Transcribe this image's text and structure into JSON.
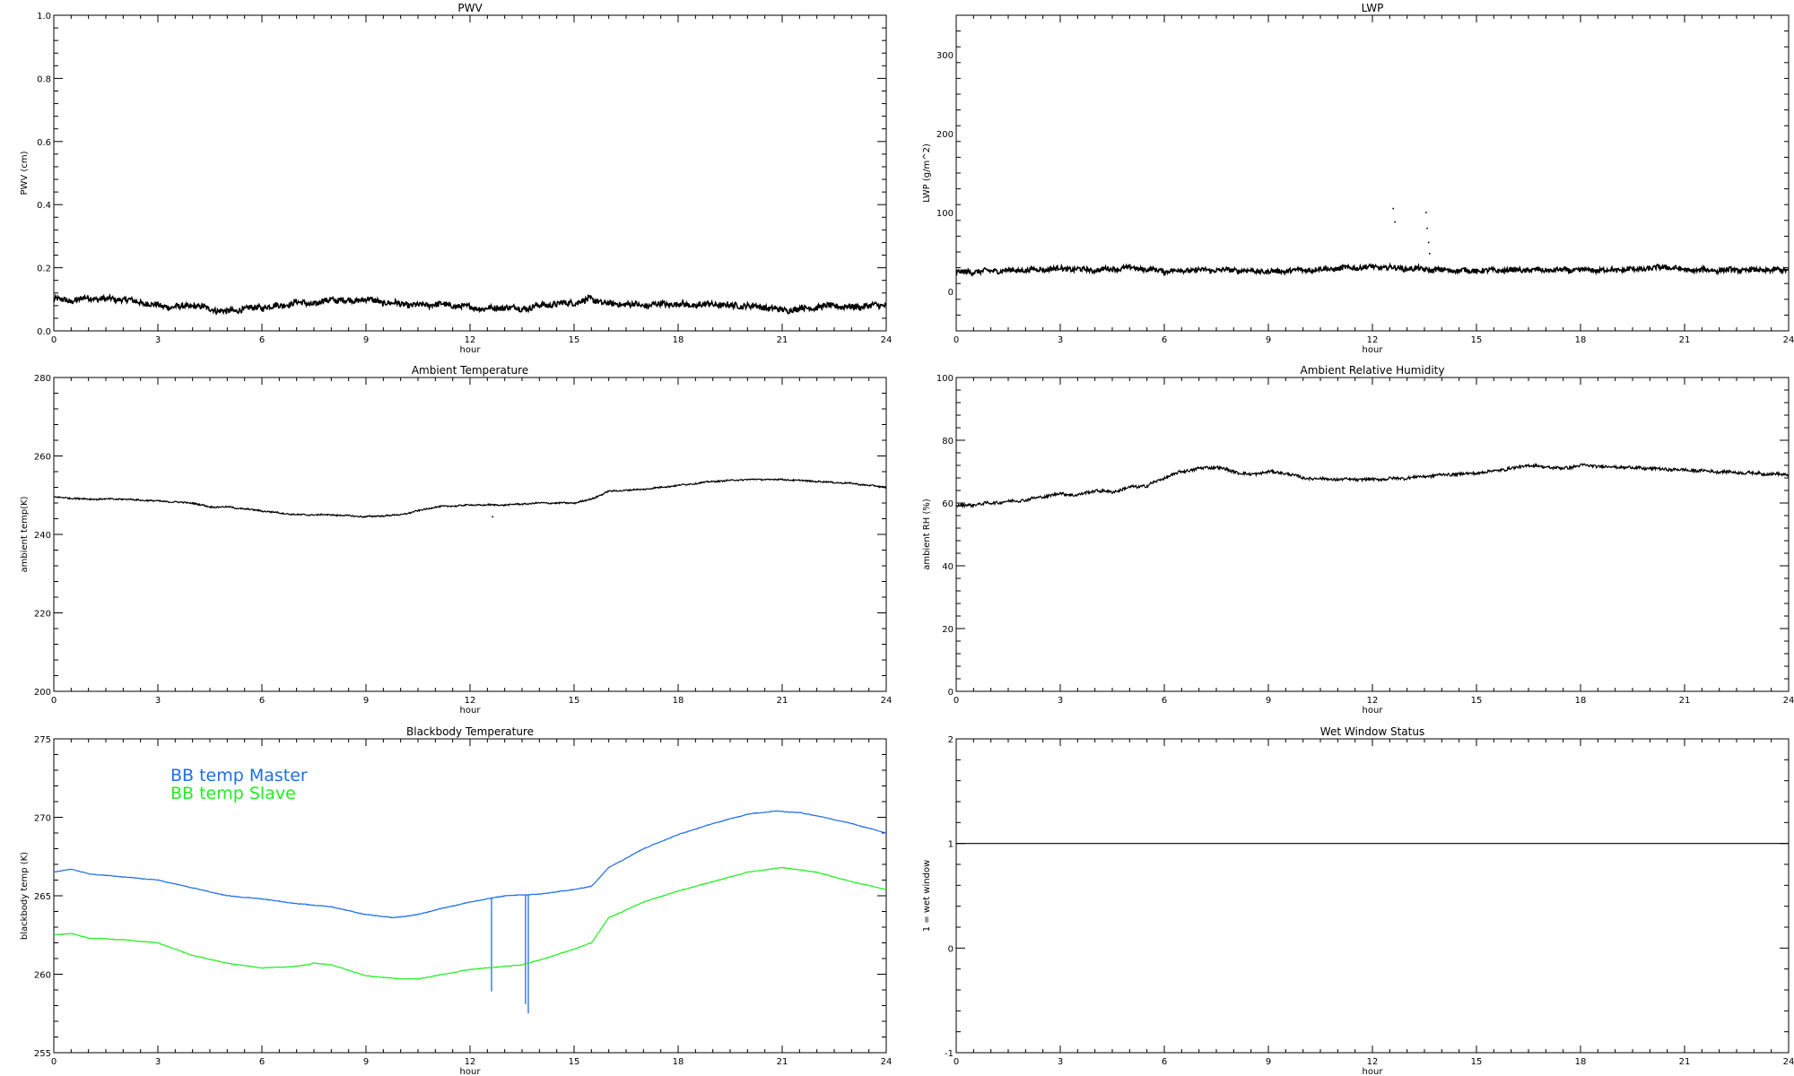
{
  "chart_data": [
    {
      "type": "line",
      "title": "PWV",
      "xlabel": "hour",
      "ylabel": "PWV (cm)",
      "xlim": [
        0,
        24
      ],
      "ylim": [
        0,
        1
      ],
      "xticks": [
        0,
        3,
        6,
        9,
        12,
        15,
        18,
        21,
        24
      ],
      "yticks": [
        0,
        0.2,
        0.4,
        0.6,
        0.8,
        1
      ],
      "ytick_labels": [
        "0.0",
        "0.2",
        "0.4",
        "0.6",
        "0.8",
        "1.0"
      ],
      "noise": 0.009,
      "series": [
        {
          "color": "#000000",
          "x": [
            0,
            0.5,
            1,
            1.5,
            2,
            2.5,
            3,
            3.5,
            4,
            4.5,
            5,
            5.5,
            6,
            6.5,
            7,
            7.5,
            8,
            8.5,
            9,
            9.5,
            10,
            10.5,
            11,
            11.5,
            12,
            12.5,
            13,
            13.5,
            14,
            14.5,
            15,
            15.5,
            16,
            16.5,
            17,
            17.5,
            18,
            18.5,
            19,
            19.5,
            20,
            20.5,
            21,
            21.5,
            22,
            22.5,
            23,
            23.5,
            24
          ],
          "y": [
            0.1,
            0.095,
            0.105,
            0.1,
            0.1,
            0.09,
            0.08,
            0.075,
            0.08,
            0.07,
            0.06,
            0.07,
            0.075,
            0.08,
            0.09,
            0.085,
            0.1,
            0.095,
            0.1,
            0.09,
            0.085,
            0.08,
            0.085,
            0.08,
            0.075,
            0.07,
            0.075,
            0.07,
            0.08,
            0.085,
            0.09,
            0.1,
            0.085,
            0.085,
            0.08,
            0.085,
            0.085,
            0.08,
            0.085,
            0.08,
            0.08,
            0.075,
            0.065,
            0.07,
            0.075,
            0.08,
            0.075,
            0.08,
            0.08
          ]
        }
      ]
    },
    {
      "type": "line",
      "title": "LWP",
      "xlabel": "hour",
      "ylabel": "LWP (g/m^2)",
      "xlim": [
        0,
        24
      ],
      "ylim": [
        -50,
        350
      ],
      "xticks": [
        0,
        3,
        6,
        9,
        12,
        15,
        18,
        21,
        24
      ],
      "yticks": [
        0,
        100,
        200,
        300
      ],
      "noise": 3,
      "series": [
        {
          "color": "#000000",
          "x": [
            0,
            1,
            2,
            3,
            4,
            5,
            6,
            7,
            8,
            9,
            10,
            11,
            12,
            13,
            14,
            15,
            16,
            17,
            18,
            19,
            20,
            20.5,
            21,
            22,
            23,
            24
          ],
          "y": [
            24,
            26,
            27,
            29,
            27,
            30,
            26,
            27,
            27,
            25,
            27,
            29,
            31,
            29,
            27,
            26,
            27,
            27,
            27,
            27,
            29,
            31,
            27,
            27,
            27,
            27
          ]
        }
      ],
      "outliers": [
        {
          "x": 12.6,
          "y": 105
        },
        {
          "x": 12.65,
          "y": 88
        },
        {
          "x": 13.55,
          "y": 100
        },
        {
          "x": 13.58,
          "y": 80
        },
        {
          "x": 13.62,
          "y": 62
        },
        {
          "x": 13.65,
          "y": 48
        }
      ]
    },
    {
      "type": "line",
      "title": "Ambient Temperature",
      "xlabel": "hour",
      "ylabel": "ambient temp(K)",
      "xlim": [
        0,
        24
      ],
      "ylim": [
        200,
        280
      ],
      "xticks": [
        0,
        3,
        6,
        9,
        12,
        15,
        18,
        21,
        24
      ],
      "yticks": [
        200,
        220,
        240,
        260,
        280
      ],
      "noise": 0.18,
      "series": [
        {
          "color": "#000000",
          "x": [
            0,
            1,
            2,
            3,
            4,
            4.5,
            5,
            6,
            7,
            8,
            9,
            10,
            11,
            12,
            13,
            14,
            15,
            15.5,
            16,
            17,
            18,
            19,
            20,
            21,
            22,
            23,
            24
          ],
          "y": [
            249.5,
            249,
            249,
            248.5,
            248,
            247,
            247,
            246,
            245,
            245,
            244.5,
            245,
            247,
            247.5,
            247.5,
            248,
            248,
            249,
            251,
            251.5,
            252.5,
            253.5,
            254,
            254,
            253.5,
            253,
            252
          ]
        }
      ],
      "outliers": [
        {
          "x": 12.65,
          "y": 244.5
        }
      ]
    },
    {
      "type": "line",
      "title": "Ambient Relative Humidity",
      "xlabel": "hour",
      "ylabel": "ambient RH (%)",
      "xlim": [
        0,
        24
      ],
      "ylim": [
        0,
        100
      ],
      "xticks": [
        0,
        3,
        6,
        9,
        12,
        15,
        18,
        21,
        24
      ],
      "yticks": [
        0,
        20,
        40,
        60,
        80,
        100
      ],
      "noise": 0.45,
      "series": [
        {
          "color": "#000000",
          "x": [
            0,
            0.5,
            1,
            1.5,
            2,
            2.5,
            3,
            3.5,
            4,
            4.5,
            5,
            5.5,
            6,
            6.5,
            7,
            7.5,
            8,
            8.5,
            9,
            9.5,
            10,
            11,
            12,
            13,
            14,
            15,
            16,
            16.5,
            17,
            17.5,
            18,
            19,
            20,
            21,
            22,
            23,
            24
          ],
          "y": [
            59,
            59.5,
            60,
            60.5,
            61,
            62,
            63,
            62.5,
            64,
            63.5,
            65,
            65.5,
            68,
            70,
            71,
            71.5,
            70,
            69,
            70,
            69.5,
            68,
            67.5,
            67.5,
            68,
            69,
            69.5,
            71,
            72,
            71.5,
            71,
            72,
            71.5,
            71,
            70.5,
            70,
            69.5,
            69
          ]
        }
      ]
    },
    {
      "type": "line",
      "title": "Blackbody Temperature",
      "xlabel": "hour",
      "ylabel": "blackbody temp (K)",
      "xlim": [
        0,
        24
      ],
      "ylim": [
        255,
        275
      ],
      "xticks": [
        0,
        3,
        6,
        9,
        12,
        15,
        18,
        21,
        24
      ],
      "yticks": [
        255,
        260,
        265,
        270,
        275
      ],
      "noise": 0.02,
      "legend_position": "upper-left",
      "series": [
        {
          "name": "BB temp Master",
          "color": "#1f6fe5",
          "x": [
            0,
            0.5,
            1,
            2,
            3,
            4,
            5,
            6,
            7,
            8,
            9,
            9.8,
            10.5,
            11,
            12,
            13,
            14,
            15,
            15.5,
            16,
            17,
            18,
            19,
            20,
            20.8,
            21.5,
            22,
            23,
            24
          ],
          "y": [
            266.5,
            266.7,
            266.4,
            266.2,
            266,
            265.5,
            265,
            264.8,
            264.5,
            264.3,
            263.8,
            263.6,
            263.8,
            264.1,
            264.6,
            265,
            265.1,
            265.4,
            265.6,
            266.8,
            268,
            268.9,
            269.6,
            270.2,
            270.4,
            270.3,
            270.1,
            269.6,
            269
          ],
          "dips": [
            {
              "x": 12.62,
              "y": 258.9
            },
            {
              "x": 13.6,
              "y": 258.1
            },
            {
              "x": 13.68,
              "y": 257.5
            }
          ]
        },
        {
          "name": "BB temp Slave",
          "color": "#22ee22",
          "x": [
            0,
            0.5,
            1,
            2,
            3,
            4,
            5,
            6,
            7,
            7.5,
            8,
            9,
            10,
            10.5,
            11,
            12,
            13,
            13.5,
            14,
            15,
            15.5,
            16,
            17,
            18,
            19,
            20,
            21,
            22,
            23,
            24
          ],
          "y": [
            262.5,
            262.6,
            262.3,
            262.2,
            262,
            261.2,
            260.7,
            260.4,
            260.5,
            260.7,
            260.6,
            259.9,
            259.7,
            259.7,
            259.9,
            260.3,
            260.5,
            260.6,
            260.9,
            261.6,
            262,
            263.6,
            264.6,
            265.3,
            265.9,
            266.5,
            266.8,
            266.5,
            265.9,
            265.4
          ]
        }
      ]
    },
    {
      "type": "line",
      "title": "Wet Window Status",
      "xlabel": "hour",
      "ylabel": "1 = wet window",
      "xlim": [
        0,
        24
      ],
      "ylim": [
        -1,
        2
      ],
      "xticks": [
        0,
        3,
        6,
        9,
        12,
        15,
        18,
        21,
        24
      ],
      "yticks": [
        -1,
        0,
        1,
        2
      ],
      "noise": 0,
      "series": [
        {
          "color": "#000000",
          "x": [
            0,
            24
          ],
          "y": [
            1,
            1
          ]
        }
      ]
    }
  ]
}
